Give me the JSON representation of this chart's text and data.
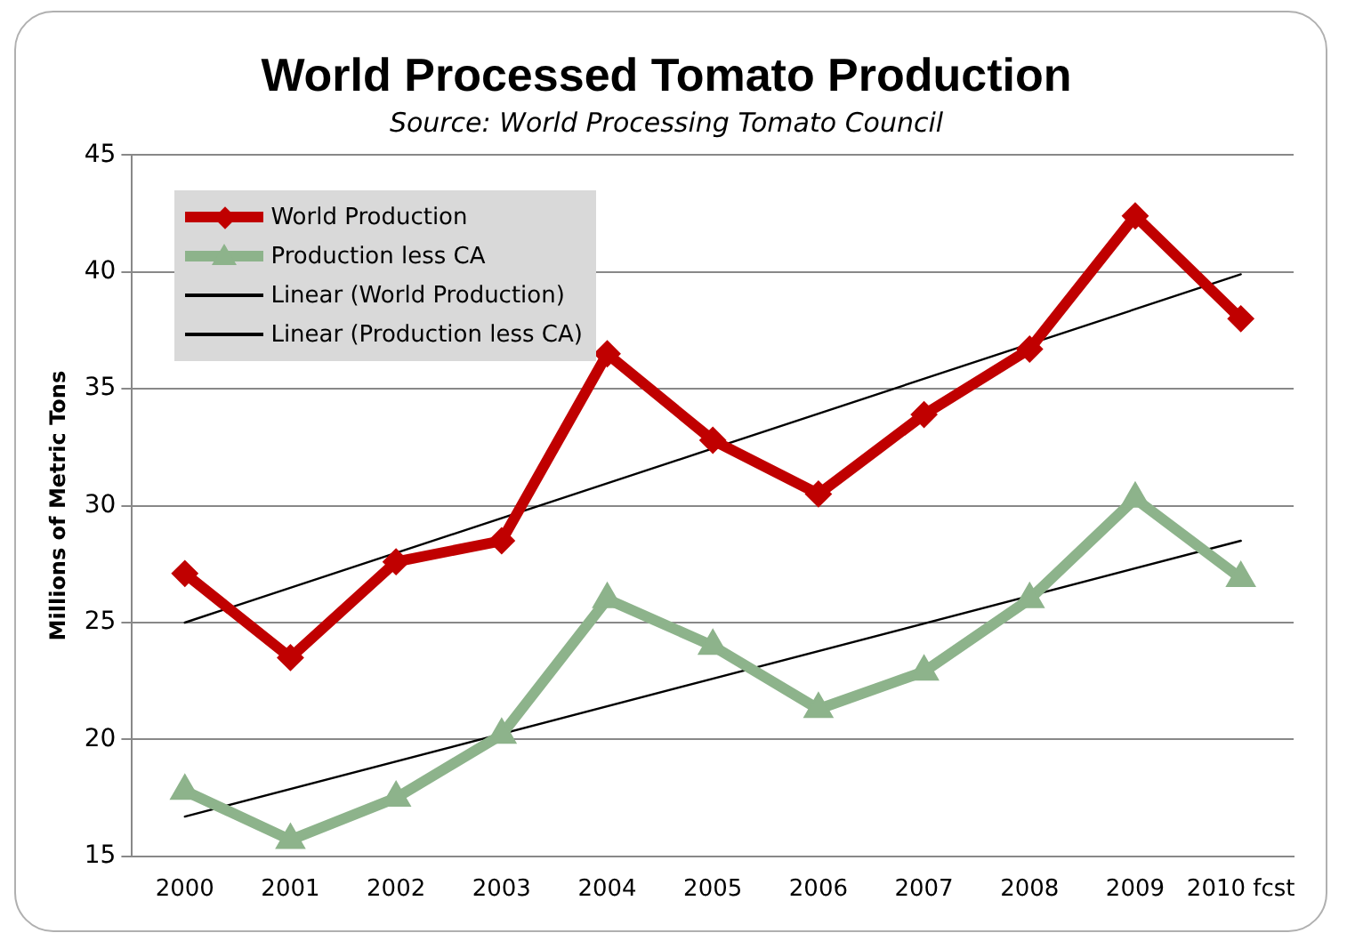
{
  "chart_data": {
    "type": "line",
    "title": "World Processed Tomato Production",
    "subtitle": "Source: World Processing Tomato Council",
    "ylabel": "Millions of Metric Tons",
    "categories": [
      "2000",
      "2001",
      "2002",
      "2003",
      "2004",
      "2005",
      "2006",
      "2007",
      "2008",
      "2009",
      "2010 fcst"
    ],
    "series": [
      {
        "name": "World Production",
        "color": "#c00000",
        "marker": "diamond",
        "values": [
          27.1,
          23.5,
          27.6,
          28.5,
          36.5,
          32.8,
          30.5,
          33.9,
          36.7,
          42.4,
          38.0
        ]
      },
      {
        "name": "Production less CA",
        "color": "#8db38b",
        "marker": "triangle",
        "values": [
          17.8,
          15.7,
          17.5,
          20.2,
          26.0,
          24.0,
          21.3,
          22.9,
          26.0,
          30.3,
          26.9
        ]
      },
      {
        "name": "Linear (World Production)",
        "color": "#000000",
        "marker": "none",
        "values": [
          25.0,
          null,
          null,
          null,
          null,
          null,
          null,
          null,
          null,
          null,
          39.9
        ]
      },
      {
        "name": "Linear (Production less CA)",
        "color": "#000000",
        "marker": "none",
        "values": [
          16.7,
          null,
          null,
          null,
          null,
          null,
          null,
          null,
          null,
          null,
          28.5
        ]
      }
    ],
    "ylim": [
      15,
      45
    ],
    "yticks": [
      15,
      20,
      25,
      30,
      35,
      40,
      45
    ],
    "grid": "y",
    "legend": "top left",
    "line_style": "solid"
  }
}
